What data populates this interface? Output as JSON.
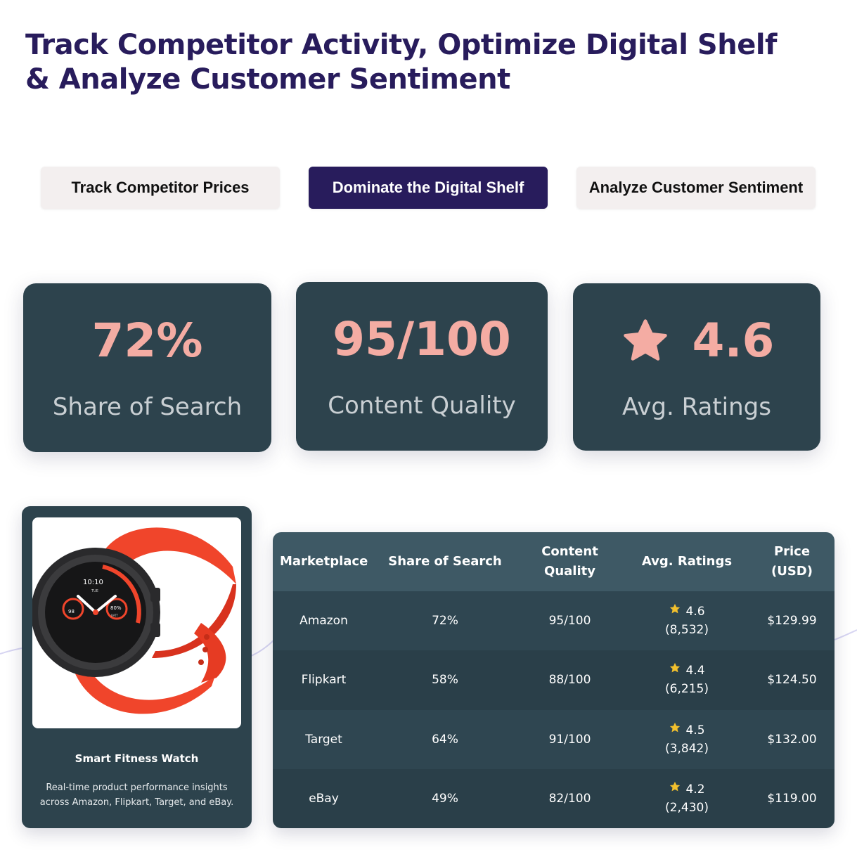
{
  "header": {
    "title_line1": "Track Competitor Activity, Optimize Digital Shelf",
    "title_line2": "& Analyze Customer Sentiment"
  },
  "tabs": [
    {
      "label": "Track Competitor Prices",
      "active": false
    },
    {
      "label": "Dominate the Digital Shelf",
      "active": true
    },
    {
      "label": "Analyze Customer Sentiment",
      "active": false
    }
  ],
  "stats": [
    {
      "value": "72%",
      "label": "Share of Search"
    },
    {
      "value": "95/100",
      "label": "Content Quality"
    },
    {
      "value": "4.6",
      "label": "Avg. Ratings",
      "icon": "star-icon"
    }
  ],
  "product": {
    "name": "Smart Fitness Watch",
    "description": "Real-time product performance insights across Amazon, Flipkart, Target, and eBay.",
    "image_icon": "smartwatch-image",
    "watch_time": "10:10",
    "watch_day": "TUE",
    "watch_heart": "98",
    "watch_batt": "80%",
    "watch_batt_label": "BATT"
  },
  "table": {
    "headers": [
      "Marketplace",
      "Share of Search",
      "Content Quality",
      "Avg. Ratings",
      "Price (USD)"
    ],
    "rows": [
      {
        "marketplace": "Amazon",
        "share": "72%",
        "quality": "95/100",
        "rating": "4.6",
        "reviews": "(8,532)",
        "price": "$129.99"
      },
      {
        "marketplace": "Flipkart",
        "share": "58%",
        "quality": "88/100",
        "rating": "4.4",
        "reviews": "(6,215)",
        "price": "$124.50"
      },
      {
        "marketplace": "Target",
        "share": "64%",
        "quality": "91/100",
        "rating": "4.5",
        "reviews": "(3,842)",
        "price": "$132.00"
      },
      {
        "marketplace": "eBay",
        "share": "49%",
        "quality": "82/100",
        "rating": "4.2",
        "reviews": "(2,430)",
        "price": "$119.00"
      }
    ]
  },
  "colors": {
    "brand": "#281c5c",
    "card_bg": "#2d434d",
    "accent": "#f4aca3",
    "star": "#f2c02d"
  }
}
